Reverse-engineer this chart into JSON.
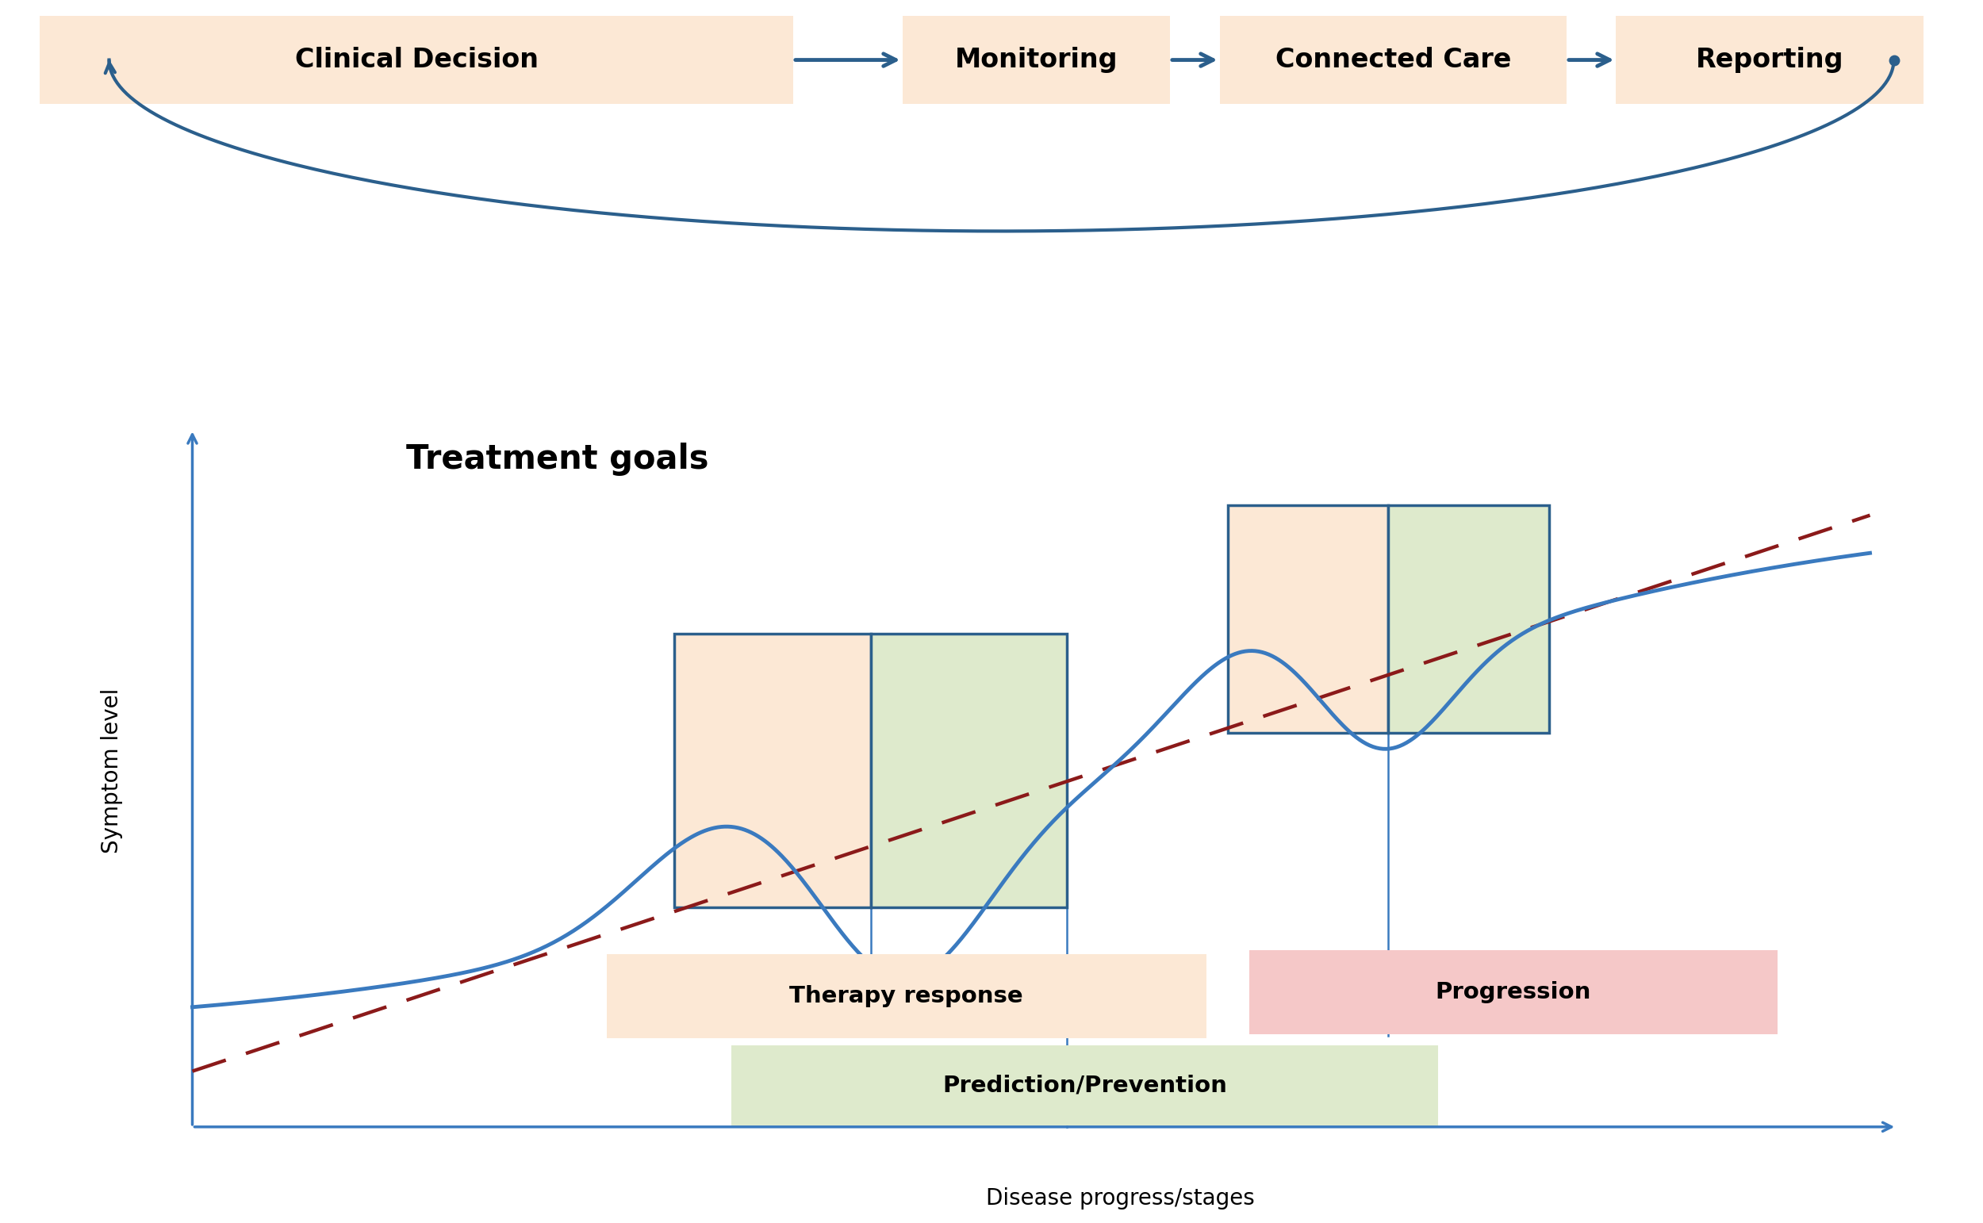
{
  "fig_width": 25.0,
  "fig_height": 15.42,
  "bg_color": "#ffffff",
  "top_bar_color": "#fce8d5",
  "top_bar_labels": [
    "Clinical Decision",
    "Monitoring",
    "Connected Care",
    "Reporting"
  ],
  "arrow_color": "#2b5f8c",
  "main_line_color": "#3a7abf",
  "dashed_line_color": "#8b1a1a",
  "axis_color": "#3a7abf",
  "therapy_box_color": "#fce8d5",
  "prediction_box_color": "#deeacc",
  "progression_box_color": "#f5c8c8",
  "window_fill_left": "#fce8d5",
  "window_fill_right": "#deeacc",
  "window_border": "#2b5f8c",
  "title_text": "Treatment goals",
  "xlabel": "Disease progress/stages",
  "ylabel": "Symptom level",
  "therapy_label": "Therapy response",
  "prediction_label": "Prediction/Prevention",
  "progression_label": "Progression"
}
